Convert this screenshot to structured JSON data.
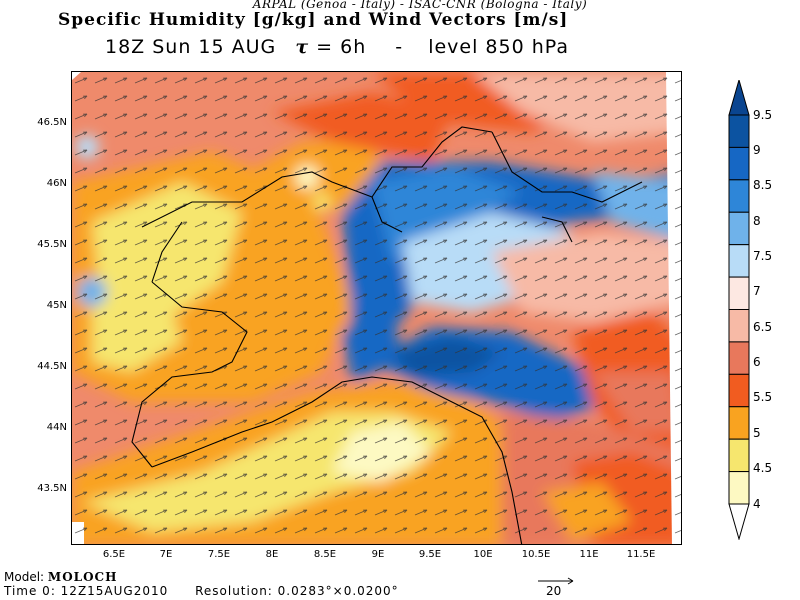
{
  "header": {
    "source_line": "ARPAL (Genoa - Italy)  -  ISAC-CNR (Bologna - Italy)",
    "title": "Specific Humidity [g/kg] and Wind Vectors [m/s]",
    "subtitle_time": "18Z Sun 15 AUG",
    "subtitle_tau_symbol": "τ",
    "subtitle_tau_value": "= 6h",
    "subtitle_separator": "-",
    "subtitle_level": "level 850 hPa"
  },
  "map": {
    "lat_labels": [
      "46.5N",
      "46N",
      "45.5N",
      "45N",
      "44.5N",
      "44N",
      "43.5N"
    ],
    "lon_labels": [
      "6.5E",
      "7E",
      "7.5E",
      "8E",
      "8.5E",
      "9E",
      "9.5E",
      "10E",
      "10.5E",
      "11E",
      "11.5E"
    ]
  },
  "colorbar": {
    "labels": [
      "9.5",
      "9",
      "8.5",
      "8",
      "7.5",
      "7",
      "6.5",
      "6",
      "5.5",
      "5",
      "4.5",
      "4"
    ],
    "colors": [
      "#0c53a1",
      "#1667c4",
      "#2e86d8",
      "#6fb2ea",
      "#b8dcf7",
      "#fde8e2",
      "#f7baa6",
      "#e8785c",
      "#f15c20",
      "#f9a320",
      "#f6e66e",
      "#fdf9c2"
    ],
    "over_color": "#0a4590",
    "under_color": "#ffffff"
  },
  "footer": {
    "model_label": "Model:",
    "model_name": "MOLOCH",
    "time0": "Time 0: 12Z15AUG2010",
    "resolution": "Resolution: 0.0283°×0.0200°",
    "vector_scale_label": "20"
  }
}
